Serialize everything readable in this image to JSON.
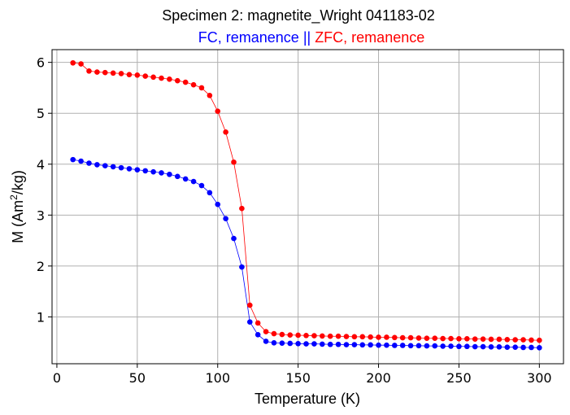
{
  "chart_data": {
    "type": "line",
    "title": "Specimen 2: magnetite_Wright 041183-02",
    "subtitle": [
      {
        "text": "FC, remanence",
        "color": "#0000ff"
      },
      {
        "text": " || ",
        "color": "#0000ff"
      },
      {
        "text": "ZFC, remanence",
        "color": "#ff0000"
      }
    ],
    "xlabel": "Temperature (K)",
    "ylabel": {
      "prefix": "M (Am",
      "sup": "2",
      "suffix": "/kg)"
    },
    "xlim": [
      -3,
      315
    ],
    "ylim": [
      0.08,
      6.25
    ],
    "xticks": [
      0,
      50,
      100,
      150,
      200,
      250,
      300
    ],
    "yticks": [
      1,
      2,
      3,
      4,
      5,
      6
    ],
    "grid": true,
    "series": [
      {
        "color": "#0000ff",
        "points": [
          [
            10,
            4.09
          ],
          [
            15,
            4.06
          ],
          [
            20,
            4.02
          ],
          [
            25,
            3.99
          ],
          [
            30,
            3.97
          ],
          [
            35,
            3.95
          ],
          [
            40,
            3.93
          ],
          [
            45,
            3.91
          ],
          [
            50,
            3.89
          ],
          [
            55,
            3.87
          ],
          [
            60,
            3.85
          ],
          [
            65,
            3.83
          ],
          [
            70,
            3.8
          ],
          [
            75,
            3.76
          ],
          [
            80,
            3.71
          ],
          [
            85,
            3.66
          ],
          [
            90,
            3.58
          ],
          [
            95,
            3.44
          ],
          [
            100,
            3.21
          ],
          [
            105,
            2.93
          ],
          [
            110,
            2.54
          ],
          [
            115,
            1.98
          ],
          [
            120,
            0.9
          ],
          [
            125,
            0.65
          ],
          [
            130,
            0.52
          ],
          [
            135,
            0.49
          ],
          [
            140,
            0.485
          ],
          [
            145,
            0.48
          ],
          [
            150,
            0.475
          ],
          [
            155,
            0.47
          ],
          [
            160,
            0.47
          ],
          [
            165,
            0.465
          ],
          [
            170,
            0.46
          ],
          [
            175,
            0.46
          ],
          [
            180,
            0.455
          ],
          [
            185,
            0.455
          ],
          [
            190,
            0.45
          ],
          [
            195,
            0.45
          ],
          [
            200,
            0.445
          ],
          [
            205,
            0.445
          ],
          [
            210,
            0.44
          ],
          [
            215,
            0.44
          ],
          [
            220,
            0.435
          ],
          [
            225,
            0.435
          ],
          [
            230,
            0.43
          ],
          [
            235,
            0.43
          ],
          [
            240,
            0.425
          ],
          [
            245,
            0.425
          ],
          [
            250,
            0.42
          ],
          [
            255,
            0.42
          ],
          [
            260,
            0.415
          ],
          [
            265,
            0.415
          ],
          [
            270,
            0.41
          ],
          [
            275,
            0.41
          ],
          [
            280,
            0.405
          ],
          [
            285,
            0.405
          ],
          [
            290,
            0.4
          ],
          [
            295,
            0.4
          ],
          [
            300,
            0.395
          ]
        ]
      },
      {
        "color": "#ff0000",
        "points": [
          [
            10,
            5.99
          ],
          [
            15,
            5.97
          ],
          [
            20,
            5.83
          ],
          [
            25,
            5.81
          ],
          [
            30,
            5.8
          ],
          [
            35,
            5.79
          ],
          [
            40,
            5.78
          ],
          [
            45,
            5.76
          ],
          [
            50,
            5.75
          ],
          [
            55,
            5.73
          ],
          [
            60,
            5.71
          ],
          [
            65,
            5.69
          ],
          [
            70,
            5.67
          ],
          [
            75,
            5.64
          ],
          [
            80,
            5.61
          ],
          [
            85,
            5.56
          ],
          [
            90,
            5.5
          ],
          [
            95,
            5.35
          ],
          [
            100,
            5.04
          ],
          [
            105,
            4.63
          ],
          [
            110,
            4.04
          ],
          [
            115,
            3.13
          ],
          [
            120,
            1.23
          ],
          [
            125,
            0.88
          ],
          [
            130,
            0.71
          ],
          [
            135,
            0.67
          ],
          [
            140,
            0.655
          ],
          [
            145,
            0.645
          ],
          [
            150,
            0.64
          ],
          [
            155,
            0.635
          ],
          [
            160,
            0.63
          ],
          [
            165,
            0.625
          ],
          [
            170,
            0.62
          ],
          [
            175,
            0.62
          ],
          [
            180,
            0.615
          ],
          [
            185,
            0.61
          ],
          [
            190,
            0.61
          ],
          [
            195,
            0.605
          ],
          [
            200,
            0.6
          ],
          [
            205,
            0.6
          ],
          [
            210,
            0.595
          ],
          [
            215,
            0.59
          ],
          [
            220,
            0.59
          ],
          [
            225,
            0.585
          ],
          [
            230,
            0.58
          ],
          [
            235,
            0.58
          ],
          [
            240,
            0.575
          ],
          [
            245,
            0.575
          ],
          [
            250,
            0.57
          ],
          [
            255,
            0.57
          ],
          [
            260,
            0.565
          ],
          [
            265,
            0.565
          ],
          [
            270,
            0.56
          ],
          [
            275,
            0.56
          ],
          [
            280,
            0.555
          ],
          [
            285,
            0.55
          ],
          [
            290,
            0.55
          ],
          [
            295,
            0.545
          ],
          [
            300,
            0.54
          ]
        ]
      }
    ]
  }
}
